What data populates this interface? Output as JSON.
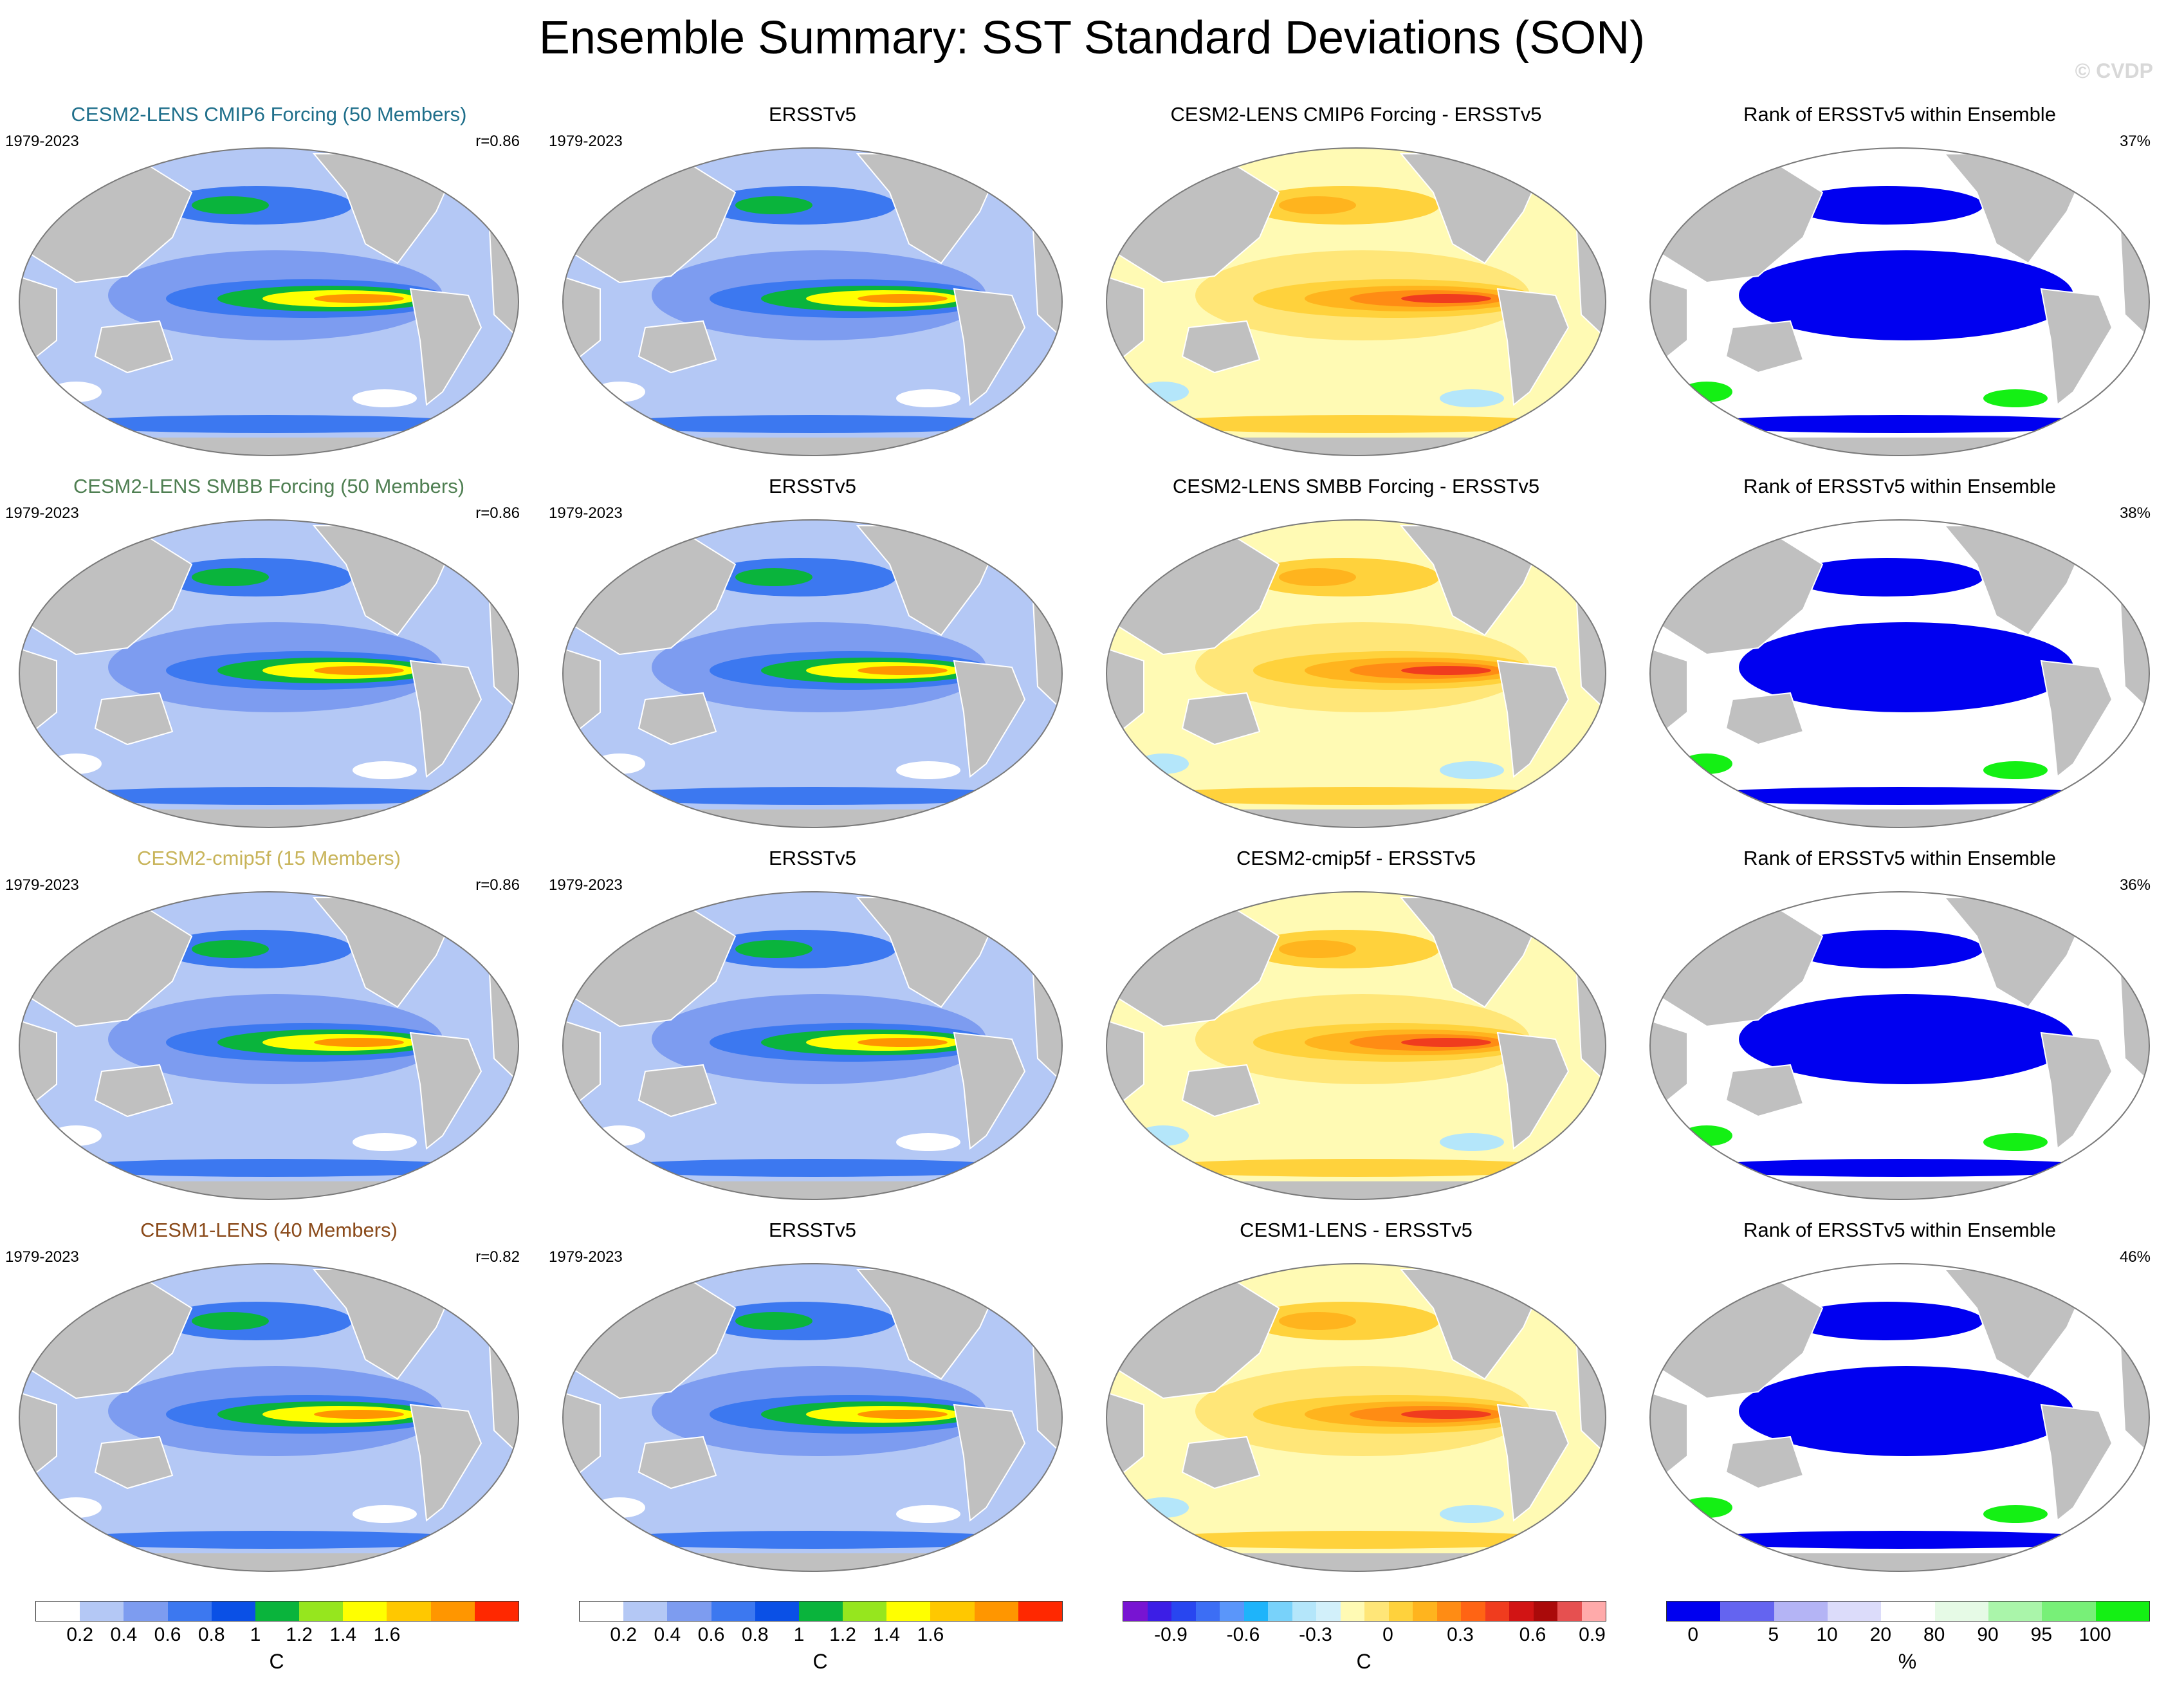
{
  "title": "Ensemble Summary: SST Standard Deviations (SON)",
  "watermark": "© CVDP",
  "rows": [
    {
      "model": {
        "title": "CESM2-LENS CMIP6 Forcing (50 Members)",
        "color": "#1f6f8b",
        "period": "1979-2023",
        "corr": "r=0.86"
      },
      "obs": {
        "title": "ERSSTv5",
        "period": "1979-2023"
      },
      "diff": {
        "title": "CESM2-LENS CMIP6 Forcing - ERSSTv5"
      },
      "rank": {
        "title": "Rank of ERSSTv5 within Ensemble",
        "pct": "37%"
      }
    },
    {
      "model": {
        "title": "CESM2-LENS SMBB Forcing (50 Members)",
        "color": "#4f7f52",
        "period": "1979-2023",
        "corr": "r=0.86"
      },
      "obs": {
        "title": "ERSSTv5",
        "period": "1979-2023"
      },
      "diff": {
        "title": "CESM2-LENS SMBB Forcing - ERSSTv5"
      },
      "rank": {
        "title": "Rank of ERSSTv5 within Ensemble",
        "pct": "38%"
      }
    },
    {
      "model": {
        "title": "CESM2-cmip5f (15 Members)",
        "color": "#c8b45a",
        "period": "1979-2023",
        "corr": "r=0.86"
      },
      "obs": {
        "title": "ERSSTv5",
        "period": "1979-2023"
      },
      "diff": {
        "title": "CESM2-cmip5f - ERSSTv5"
      },
      "rank": {
        "title": "Rank of ERSSTv5 within Ensemble",
        "pct": "36%"
      }
    },
    {
      "model": {
        "title": "CESM1-LENS (40 Members)",
        "color": "#8a4a1a",
        "period": "1979-2023",
        "corr": "r=0.82"
      },
      "obs": {
        "title": "ERSSTv5",
        "period": "1979-2023"
      },
      "diff": {
        "title": "CESM1-LENS - ERSSTv5"
      },
      "rank": {
        "title": "Rank of ERSSTv5 within Ensemble",
        "pct": "46%"
      }
    }
  ],
  "colorbars": {
    "std": {
      "unit": "C",
      "colors": [
        "#ffffff",
        "#b4c8f5",
        "#7d9cf0",
        "#3c78f0",
        "#0a50e6",
        "#0ab43c",
        "#96e61e",
        "#ffff00",
        "#ffc800",
        "#ff9600",
        "#ff2800"
      ],
      "labels": [
        "0.2",
        "0.4",
        "0.6",
        "0.8",
        "1",
        "1.2",
        "1.4",
        "1.6"
      ]
    },
    "std2": {
      "unit": "C",
      "colors": [
        "#ffffff",
        "#b4c8f5",
        "#7d9cf0",
        "#3c78f0",
        "#0a50e6",
        "#0ab43c",
        "#96e61e",
        "#ffff00",
        "#ffc800",
        "#ff9600",
        "#ff2800"
      ],
      "labels": [
        "0.2",
        "0.4",
        "0.6",
        "0.8",
        "1",
        "1.2",
        "1.4",
        "1.6"
      ]
    },
    "diff": {
      "unit": "C",
      "colors": [
        "#7814d2",
        "#3c1ee6",
        "#2846f0",
        "#3c6ef5",
        "#5a96fa",
        "#1eb4fa",
        "#78d2fa",
        "#b4e6fa",
        "#d2f0fa",
        "#fffab4",
        "#ffe678",
        "#ffd23c",
        "#ffb41e",
        "#ff8c14",
        "#ff6414",
        "#f03c1e",
        "#d21414",
        "#aa0a0a",
        "#e65050",
        "#ffaaaa"
      ],
      "labels": [
        "-0.9",
        "-0.6",
        "-0.3",
        "0",
        "0.3",
        "0.6",
        "0.9"
      ]
    },
    "rank": {
      "unit": "%",
      "colors": [
        "#0000f0",
        "#6464f0",
        "#b4b4f5",
        "#dcdcfa",
        "#ffffff",
        "#e6fae6",
        "#aaf5aa",
        "#78f078",
        "#14f014"
      ],
      "labels": [
        "0",
        "5",
        "10",
        "20",
        "80",
        "90",
        "95",
        "100"
      ]
    }
  }
}
